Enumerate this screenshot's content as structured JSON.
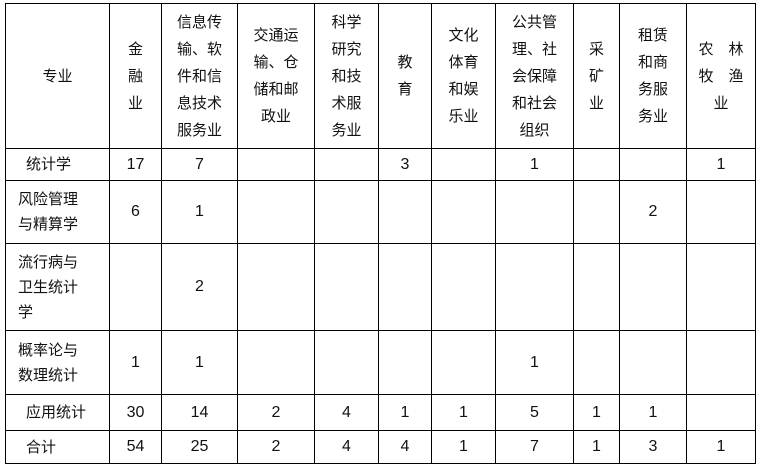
{
  "headers": [
    "专业",
    "金\n融\n业",
    "信息传\n输、软\n件和信\n息技术\n服务业",
    "交通运\n输、仓\n储和邮\n政业",
    "科学\n研究\n和技\n术服\n务业",
    "教\n育",
    "文化\n体育\n和娱\n乐业",
    "公共管\n理、社\n会保障\n和社会\n组织",
    "采\n矿\n业",
    "租赁\n和商\n务服\n务业",
    "农　林\n牧　渔\n业　　"
  ],
  "rows": [
    {
      "major": "统计学",
      "values": [
        "17",
        "7",
        "",
        "",
        "3",
        "",
        "1",
        "",
        "",
        "1"
      ]
    },
    {
      "major": "风险管理\n与精算学",
      "values": [
        "6",
        "1",
        "",
        "",
        "",
        "",
        "",
        "",
        "2",
        ""
      ]
    },
    {
      "major": "流行病与\n卫生统计\n学",
      "values": [
        "",
        "2",
        "",
        "",
        "",
        "",
        "",
        "",
        "",
        ""
      ]
    },
    {
      "major": "概率论与\n数理统计",
      "values": [
        "1",
        "1",
        "",
        "",
        "",
        "",
        "1",
        "",
        "",
        ""
      ]
    },
    {
      "major": "应用统计",
      "values": [
        "30",
        "14",
        "2",
        "4",
        "1",
        "1",
        "5",
        "1",
        "1",
        ""
      ]
    },
    {
      "major": "合计",
      "values": [
        "54",
        "25",
        "2",
        "4",
        "4",
        "1",
        "7",
        "1",
        "3",
        "1"
      ]
    }
  ]
}
